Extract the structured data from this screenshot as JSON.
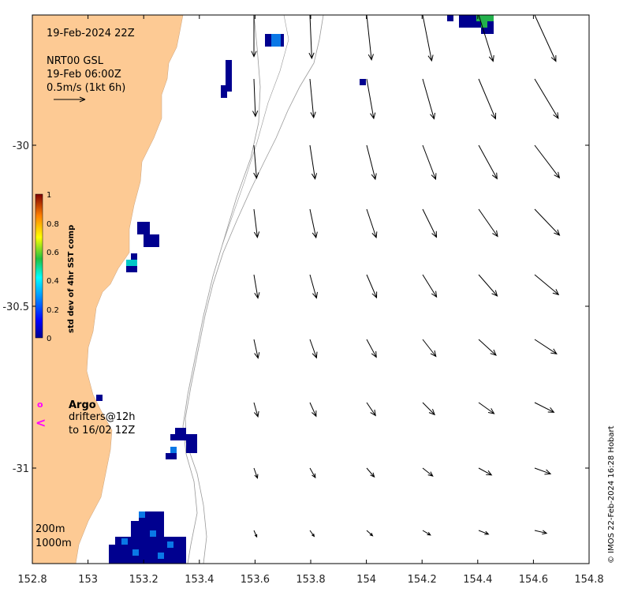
{
  "map": {
    "title_date": "19-Feb-2024 22Z",
    "current_product": "NRT00 GSL",
    "current_time": "19-Feb 06:00Z",
    "scale_arrow_label": "0.5m/s (1kt 6h)",
    "colorbar": {
      "title": "std dev of 4hr SST comp",
      "ticks": [
        "1",
        "0.8",
        "0.6",
        "0.4",
        "0.2",
        "0"
      ]
    },
    "legend": {
      "argo_label": "Argo",
      "drifters_label": "drifters@12h",
      "drifters_period": "to 16/02 12Z",
      "argo_symbol": "o",
      "drifter_symbol": "<"
    },
    "isobaths": {
      "shallow_label": "200m",
      "deep_label": "1000m"
    },
    "credit": "© IMOS 22-Feb-2024 16:28 Hobart",
    "x_ticks": [
      "152.8",
      "153",
      "153.2",
      "153.4",
      "153.6",
      "153.8",
      "154",
      "154.2",
      "154.4",
      "154.6",
      "154.8"
    ],
    "y_ticks": [
      "-30",
      "-30.5",
      "-31"
    ],
    "colors": {
      "land": "#fdca94",
      "accent_magenta": "#ff00ff",
      "sst_low": "#00008f",
      "sst_mid": "#0a78e6",
      "sst_green": "#22b14c"
    }
  }
}
